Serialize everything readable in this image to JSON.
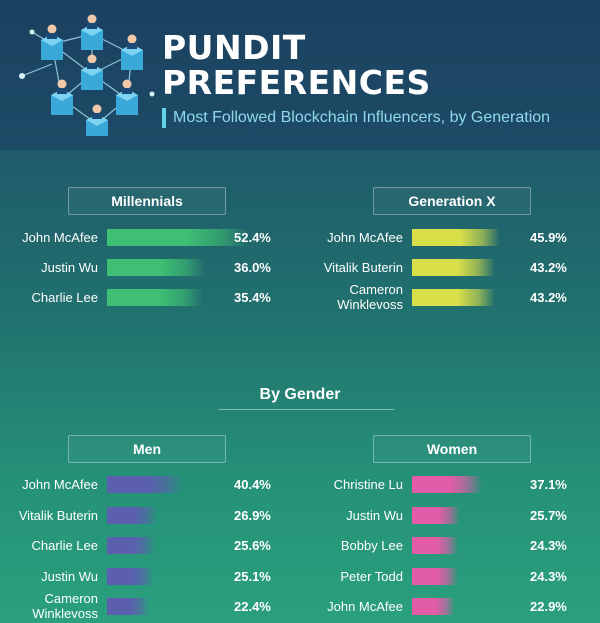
{
  "header": {
    "title_line1": "PUNDIT",
    "title_line2": "PREFERENCES",
    "subtitle": "Most Followed Blockchain Influencers, by Generation"
  },
  "colors": {
    "millennials": "#3fbf73",
    "generation_x": "#d8df49",
    "men": "#5b5fae",
    "women": "#e25ca8"
  },
  "section": {
    "gender_title": "By Gender"
  },
  "chart_data": [
    {
      "type": "bar",
      "title": "Millennials",
      "categories": [
        "John McAfee",
        "Justin Wu",
        "Charlie Lee"
      ],
      "values": [
        52.4,
        36.0,
        35.4
      ],
      "labels": [
        "52.4%",
        "36.0%",
        "35.4%"
      ],
      "unit": "%",
      "color": "#3fbf73"
    },
    {
      "type": "bar",
      "title": "Generation X",
      "categories": [
        "John McAfee",
        "Vitalik Buterin",
        "Cameron Winklevoss"
      ],
      "values": [
        45.9,
        43.2,
        43.2
      ],
      "labels": [
        "45.9%",
        "43.2%",
        "43.2%"
      ],
      "unit": "%",
      "color": "#d8df49"
    },
    {
      "type": "bar",
      "title": "Men",
      "categories": [
        "John McAfee",
        "Vitalik Buterin",
        "Charlie Lee",
        "Justin Wu",
        "Cameron Winklevoss"
      ],
      "values": [
        40.4,
        26.9,
        25.6,
        25.1,
        22.4
      ],
      "labels": [
        "40.4%",
        "26.9%",
        "25.6%",
        "25.1%",
        "22.4%"
      ],
      "unit": "%",
      "color": "#5b5fae"
    },
    {
      "type": "bar",
      "title": "Women",
      "categories": [
        "Christine Lu",
        "Justin Wu",
        "Bobby Lee",
        "Peter Todd",
        "John McAfee"
      ],
      "values": [
        37.1,
        25.7,
        24.3,
        24.3,
        22.9
      ],
      "labels": [
        "37.1%",
        "25.7%",
        "24.3%",
        "24.3%",
        "22.9%"
      ],
      "unit": "%",
      "color": "#e25ca8"
    }
  ]
}
